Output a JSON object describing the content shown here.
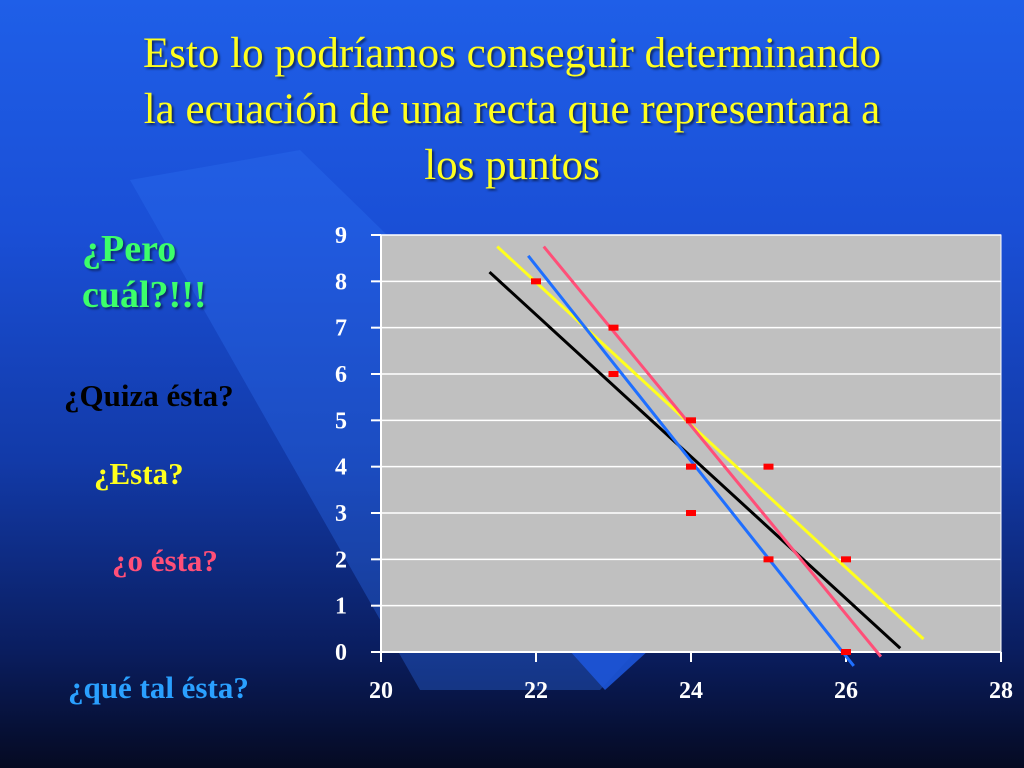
{
  "title_lines": [
    "Esto lo podríamos conseguir determinando",
    "la ecuación de una recta que representara a",
    "los puntos"
  ],
  "labels": {
    "pero": [
      "¿Pero",
      "cuál?!!!"
    ],
    "quiza": "¿Quiza ésta?",
    "esta": "¿Esta?",
    "o_esta": "¿o ésta?",
    "que_tal": "¿qué tal ésta?"
  },
  "colors": {
    "title": "#ffff1e",
    "pero": "#3cff6a",
    "black_line": "#000000",
    "yellow_line": "#ffff1e",
    "red_line": "#ff4f78",
    "blue_line": "#1f6fff",
    "points": "#ff0000",
    "plot_bg": "#c0c0c0"
  },
  "chart_data": {
    "type": "scatter",
    "title": "",
    "xlabel": "",
    "ylabel": "",
    "xlim": [
      20,
      28
    ],
    "ylim": [
      0,
      9
    ],
    "x_ticks": [
      "20",
      "22",
      "24",
      "26",
      "28"
    ],
    "y_ticks": [
      "0",
      "1",
      "2",
      "3",
      "4",
      "5",
      "6",
      "7",
      "8",
      "9"
    ],
    "grid": "horizontal",
    "points": [
      {
        "x": 22,
        "y": 8
      },
      {
        "x": 23,
        "y": 7
      },
      {
        "x": 23,
        "y": 6
      },
      {
        "x": 24,
        "y": 5
      },
      {
        "x": 24,
        "y": 4
      },
      {
        "x": 24,
        "y": 3
      },
      {
        "x": 25,
        "y": 4
      },
      {
        "x": 25,
        "y": 2
      },
      {
        "x": 26,
        "y": 2
      },
      {
        "x": 26,
        "y": 0
      }
    ],
    "lines": [
      {
        "color": "black",
        "x1": 21.4,
        "y1": 8.2,
        "x2": 26.7,
        "y2": 0.08
      },
      {
        "color": "yellow",
        "x1": 21.5,
        "y1": 8.75,
        "x2": 27.0,
        "y2": 0.28
      },
      {
        "color": "red",
        "x1": 22.1,
        "y1": 8.75,
        "x2": 26.45,
        "y2": -0.1
      },
      {
        "color": "blue",
        "x1": 21.9,
        "y1": 8.55,
        "x2": 26.1,
        "y2": -0.3
      }
    ]
  }
}
